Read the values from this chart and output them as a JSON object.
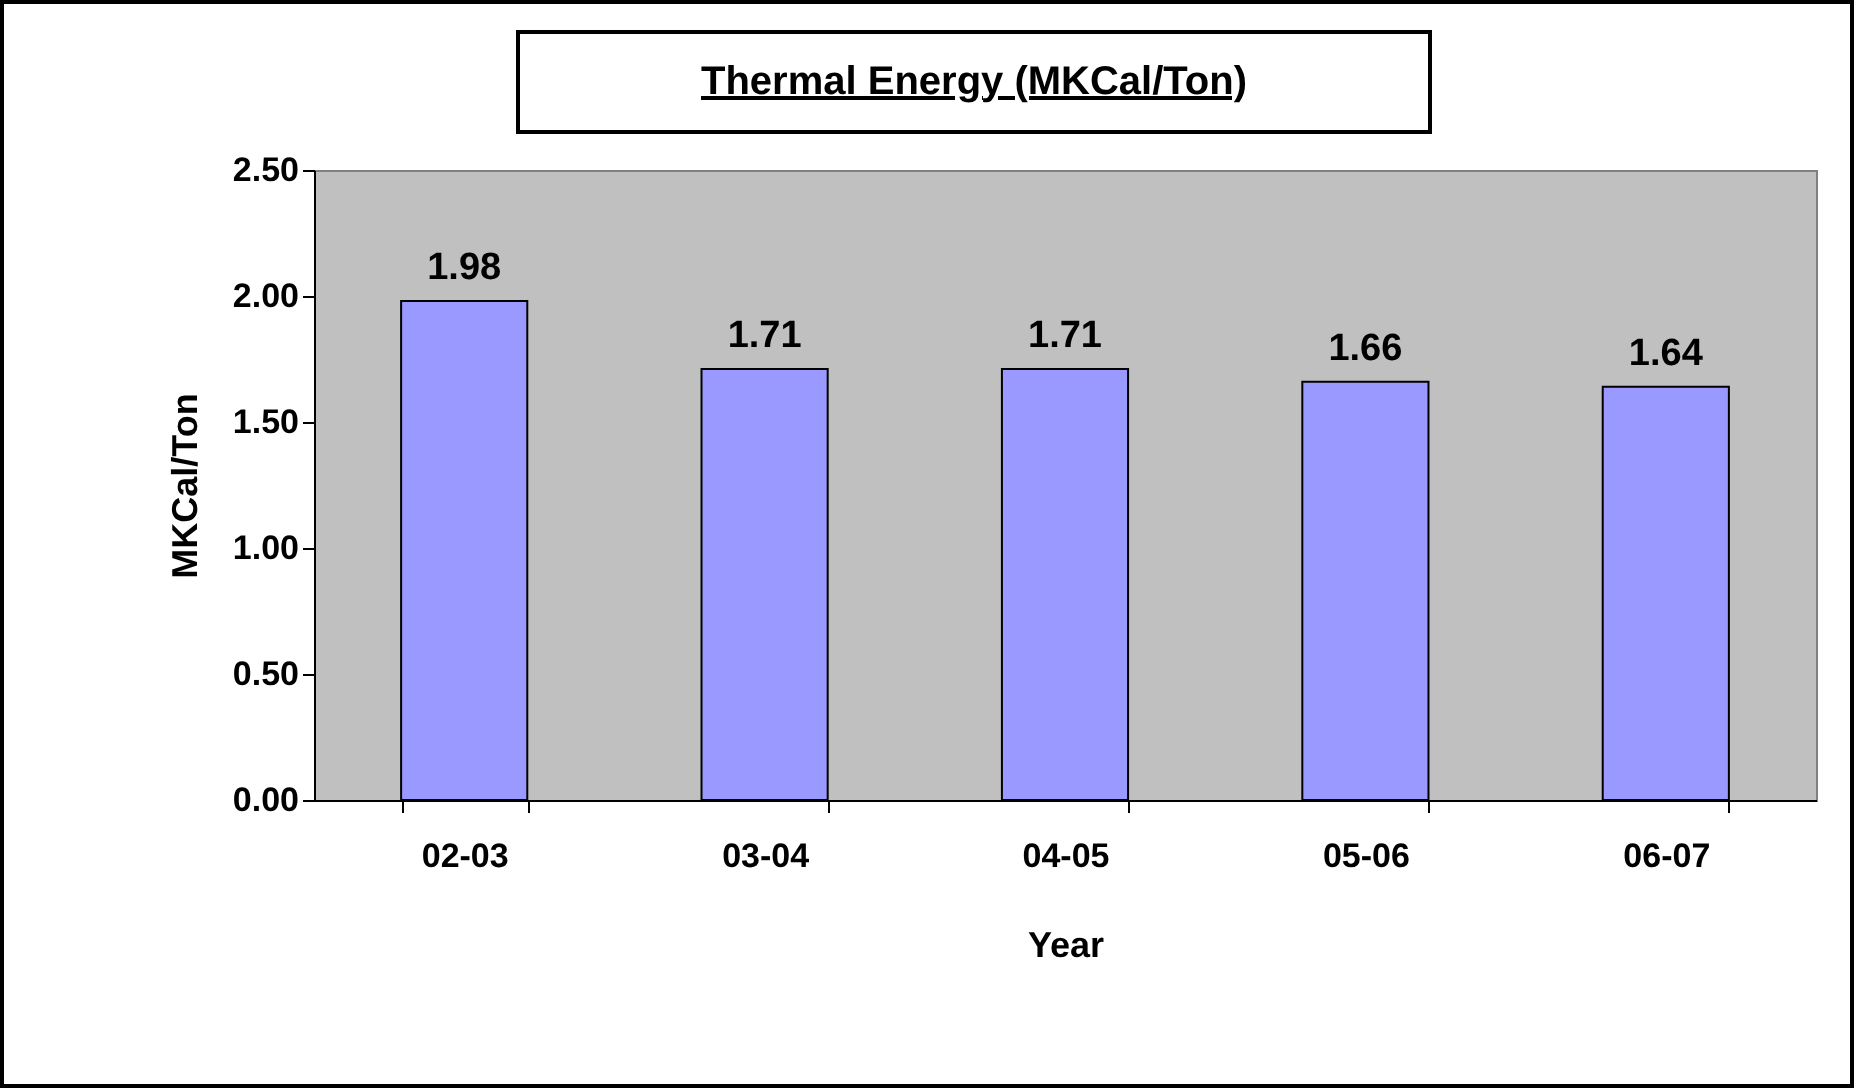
{
  "chart_data": {
    "type": "bar",
    "title": "Thermal Energy  (MKCal/Ton)",
    "xlabel": "Year",
    "ylabel": "MKCal/Ton",
    "categories": [
      "02-03",
      "03-04",
      "04-05",
      "05-06",
      "06-07"
    ],
    "values": [
      1.98,
      1.71,
      1.71,
      1.66,
      1.64
    ],
    "color": "#9999ff",
    "data_labels": true,
    "grid": false,
    "ylim": [
      0,
      2.5
    ],
    "yticks": [
      {
        "value": 0,
        "label": "0.00"
      },
      {
        "value": 0.5,
        "label": "0.50"
      },
      {
        "value": 1,
        "label": "1.00"
      },
      {
        "value": 1.5,
        "label": "1.50"
      },
      {
        "value": 2,
        "label": "2.00"
      },
      {
        "value": 2.5,
        "label": "2.50"
      }
    ]
  }
}
